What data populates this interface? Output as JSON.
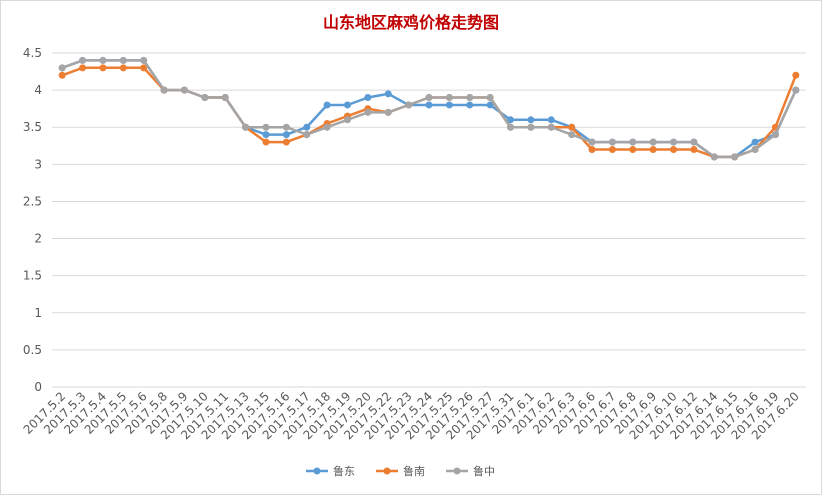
{
  "chart_data": {
    "type": "line",
    "title": "山东地区麻鸡价格走势图",
    "xlabel": "",
    "ylabel": "",
    "ylim": [
      0,
      4.5
    ],
    "yticks": [
      "0",
      "0.5",
      "1",
      "1.5",
      "2",
      "2.5",
      "3",
      "3.5",
      "4",
      "4.5"
    ],
    "grid": true,
    "legend_position": "bottom",
    "categories": [
      "2017.5.2",
      "2017.5.3",
      "2017.5.4",
      "2017.5.5",
      "2017.5.6",
      "2017.5.8",
      "2017.5.9",
      "2017.5.10",
      "2017.5.11",
      "2017.5.13",
      "2017.5.15",
      "2017.5.16",
      "2017.5.17",
      "2017.5.18",
      "2017.5.19",
      "2017.5.20",
      "2017.5.22",
      "2017.5.23",
      "2017.5.24",
      "2017.5.25",
      "2017.5.26",
      "2017.5.27",
      "2017.5.31",
      "2017.6.1",
      "2017.6.2",
      "2017.6.3",
      "2017.6.6",
      "2017.6.7",
      "2017.6.8",
      "2017.6.9",
      "2017.6.10",
      "2017.6.12",
      "2017.6.14",
      "2017.6.15",
      "2017.6.16",
      "2017.6.19",
      "2017.6.20"
    ],
    "series": [
      {
        "name": "鲁东",
        "color": "#5b9bd5",
        "values": [
          4.3,
          4.4,
          4.4,
          4.4,
          4.4,
          4.0,
          4.0,
          3.9,
          3.9,
          3.5,
          3.4,
          3.4,
          3.5,
          3.8,
          3.8,
          3.9,
          3.95,
          3.8,
          3.8,
          3.8,
          3.8,
          3.8,
          3.6,
          3.6,
          3.6,
          3.5,
          3.3,
          3.3,
          3.3,
          3.3,
          3.3,
          3.3,
          3.1,
          3.1,
          3.3,
          3.4,
          4.0
        ]
      },
      {
        "name": "鲁南",
        "color": "#ed7d31",
        "values": [
          4.2,
          4.3,
          4.3,
          4.3,
          4.3,
          4.0,
          4.0,
          3.9,
          3.9,
          3.5,
          3.3,
          3.3,
          3.4,
          3.55,
          3.65,
          3.75,
          3.7,
          3.8,
          3.9,
          3.9,
          3.9,
          3.9,
          3.5,
          3.5,
          3.5,
          3.5,
          3.2,
          3.2,
          3.2,
          3.2,
          3.2,
          3.2,
          3.1,
          3.1,
          3.2,
          3.5,
          4.2
        ]
      },
      {
        "name": "鲁中",
        "color": "#a5a5a5",
        "values": [
          4.3,
          4.4,
          4.4,
          4.4,
          4.4,
          4.0,
          4.0,
          3.9,
          3.9,
          3.5,
          3.5,
          3.5,
          3.4,
          3.5,
          3.6,
          3.7,
          3.7,
          3.8,
          3.9,
          3.9,
          3.9,
          3.9,
          3.5,
          3.5,
          3.5,
          3.4,
          3.3,
          3.3,
          3.3,
          3.3,
          3.3,
          3.3,
          3.1,
          3.1,
          3.2,
          3.4,
          4.0
        ]
      }
    ]
  }
}
